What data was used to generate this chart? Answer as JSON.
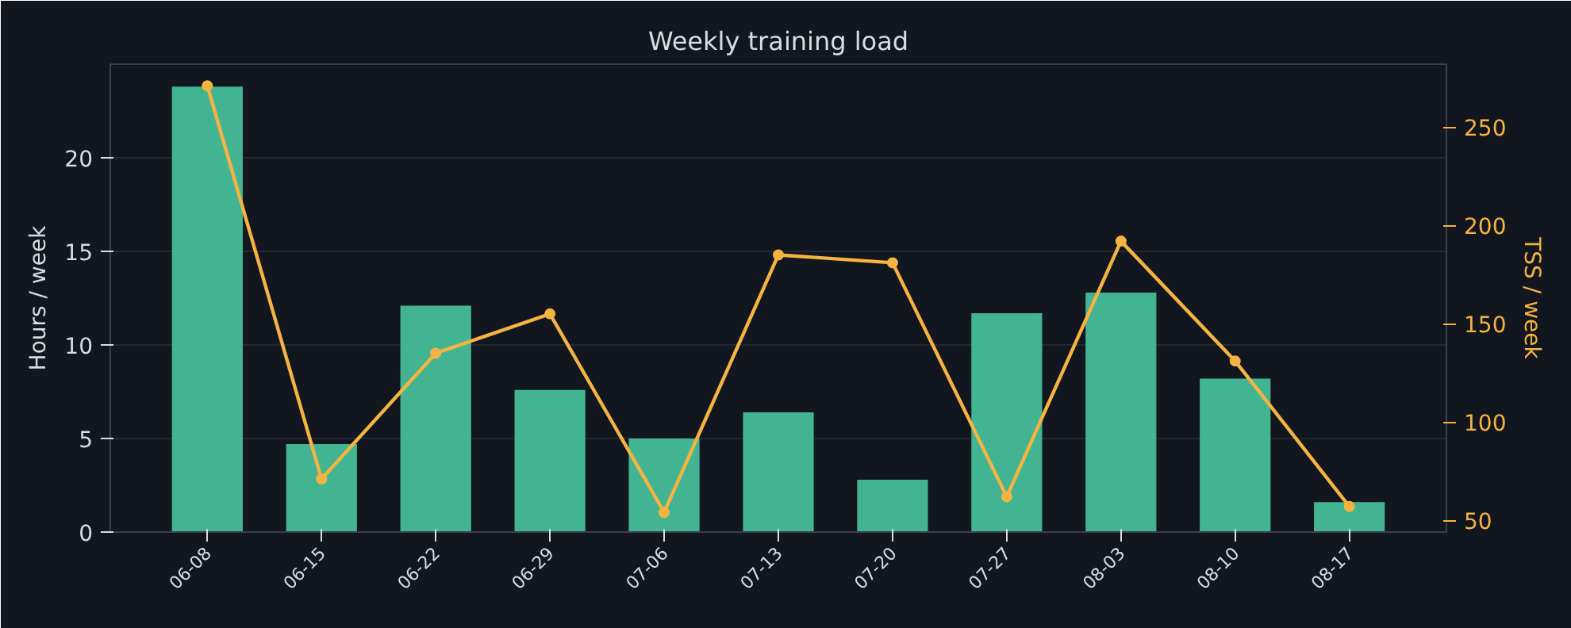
{
  "chart_data": {
    "type": "bar",
    "title": "Weekly training load",
    "ylabel": "Hours / week",
    "y2label": "TSS / week",
    "categories": [
      "06-08",
      "06-15",
      "06-22",
      "06-29",
      "07-06",
      "07-13",
      "07-20",
      "07-27",
      "08-03",
      "08-10",
      "08-17"
    ],
    "series": [
      {
        "color": "#43b491",
        "values": [
          23.8,
          4.7,
          12.1,
          7.6,
          5.0,
          6.4,
          2.8,
          11.7,
          12.8,
          8.2,
          1.6
        ]
      },
      {
        "type": "line",
        "axis": "y2",
        "color": "#f5b342",
        "values": [
          271,
          71,
          135,
          155,
          54,
          185,
          181,
          62,
          192,
          131,
          57
        ]
      }
    ],
    "ylim": [
      0,
      25
    ],
    "yticks": [
      0,
      5,
      10,
      15,
      20
    ],
    "y2lim": [
      44,
      282
    ],
    "y2ticks": [
      50,
      100,
      150,
      200,
      250
    ],
    "grid": "y",
    "marker": "circle",
    "line_style": "solid"
  }
}
